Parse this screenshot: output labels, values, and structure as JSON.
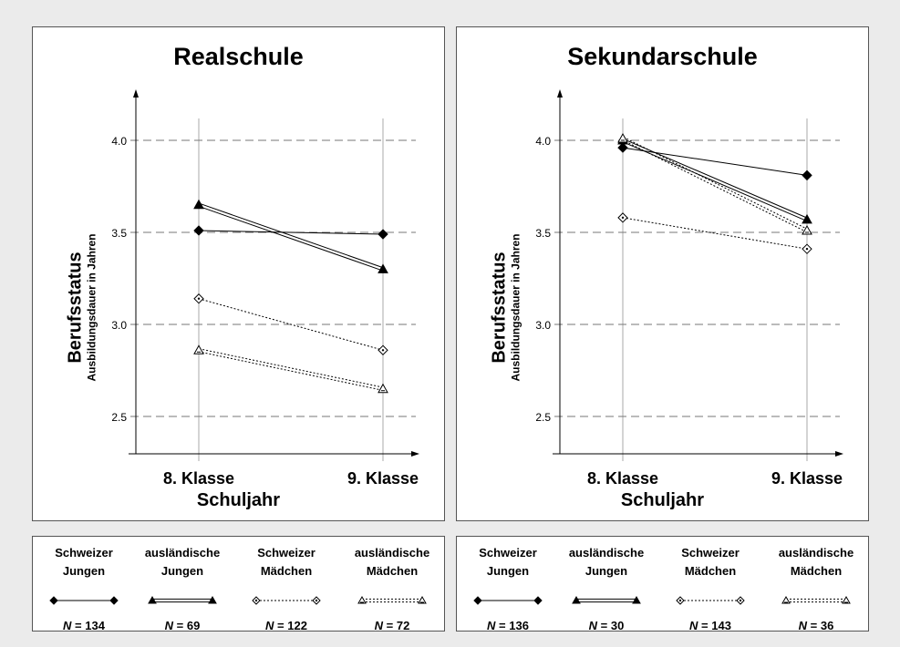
{
  "panels": [
    {
      "title": "Realschule",
      "xlabel": "Schuljahr",
      "ylabel": "Berufsstatus",
      "ylabel_sub": "Ausbildungsdauer in Jahren",
      "x_categories": [
        "8. Klasse",
        "9. Klasse"
      ],
      "y_ticks": [
        "4.0",
        "3.5",
        "3.0",
        "2.5"
      ],
      "legend": [
        {
          "name1": "Schweizer",
          "name2": "Jungen",
          "n_label": "N",
          "n_value": "= 134",
          "marker": "diamond-filled",
          "line": "solid"
        },
        {
          "name1": "ausländische",
          "name2": "Jungen",
          "n_label": "N",
          "n_value": "= 69",
          "marker": "triangle-filled",
          "line": "double"
        },
        {
          "name1": "Schweizer",
          "name2": "Mädchen",
          "n_label": "N",
          "n_value": "= 122",
          "marker": "diamond-open",
          "line": "dotted"
        },
        {
          "name1": "ausländische",
          "name2": "Mädchen",
          "n_label": "N",
          "n_value": "= 72",
          "marker": "triangle-open",
          "line": "double-dotted"
        }
      ]
    },
    {
      "title": "Sekundarschule",
      "xlabel": "Schuljahr",
      "ylabel": "Berufsstatus",
      "ylabel_sub": "Ausbildungsdauer in Jahren",
      "x_categories": [
        "8. Klasse",
        "9. Klasse"
      ],
      "y_ticks": [
        "4.0",
        "3.5",
        "3.0",
        "2.5"
      ],
      "legend": [
        {
          "name1": "Schweizer",
          "name2": "Jungen",
          "n_label": "N",
          "n_value": "= 136",
          "marker": "diamond-filled",
          "line": "solid"
        },
        {
          "name1": "ausländische",
          "name2": "Jungen",
          "n_label": "N",
          "n_value": "= 30",
          "marker": "triangle-filled",
          "line": "double"
        },
        {
          "name1": "Schweizer",
          "name2": "Mädchen",
          "n_label": "N",
          "n_value": "= 143",
          "marker": "diamond-open",
          "line": "dotted"
        },
        {
          "name1": "ausländische",
          "name2": "Mädchen",
          "n_label": "N",
          "n_value": "= 36",
          "marker": "triangle-open",
          "line": "double-dotted"
        }
      ]
    }
  ],
  "chart_data": [
    {
      "type": "line",
      "title": "Realschule",
      "xlabel": "Schuljahr",
      "ylabel": "Berufsstatus Ausbildungsdauer in Jahren",
      "categories": [
        "8. Klasse",
        "9. Klasse"
      ],
      "ylim": [
        2.25,
        4.25
      ],
      "yticks": [
        2.5,
        3.0,
        3.5,
        4.0
      ],
      "grid": true,
      "series": [
        {
          "name": "Schweizer Jungen",
          "values": [
            3.51,
            3.49
          ]
        },
        {
          "name": "ausländische Jungen",
          "values": [
            3.65,
            3.3
          ]
        },
        {
          "name": "Schweizer Mädchen",
          "values": [
            3.14,
            2.86
          ]
        },
        {
          "name": "ausländische Mädchen",
          "values": [
            2.86,
            2.65
          ]
        }
      ]
    },
    {
      "type": "line",
      "title": "Sekundarschule",
      "xlabel": "Schuljahr",
      "ylabel": "Berufsstatus Ausbildungsdauer in Jahren",
      "categories": [
        "8. Klasse",
        "9. Klasse"
      ],
      "ylim": [
        2.25,
        4.25
      ],
      "yticks": [
        2.5,
        3.0,
        3.5,
        4.0
      ],
      "grid": true,
      "series": [
        {
          "name": "Schweizer Jungen",
          "values": [
            3.96,
            3.81
          ]
        },
        {
          "name": "ausländische Jungen",
          "values": [
            4.0,
            3.57
          ]
        },
        {
          "name": "Schweizer Mädchen",
          "values": [
            3.58,
            3.41
          ]
        },
        {
          "name": "ausländische Mädchen",
          "values": [
            4.01,
            3.51
          ]
        }
      ]
    }
  ]
}
